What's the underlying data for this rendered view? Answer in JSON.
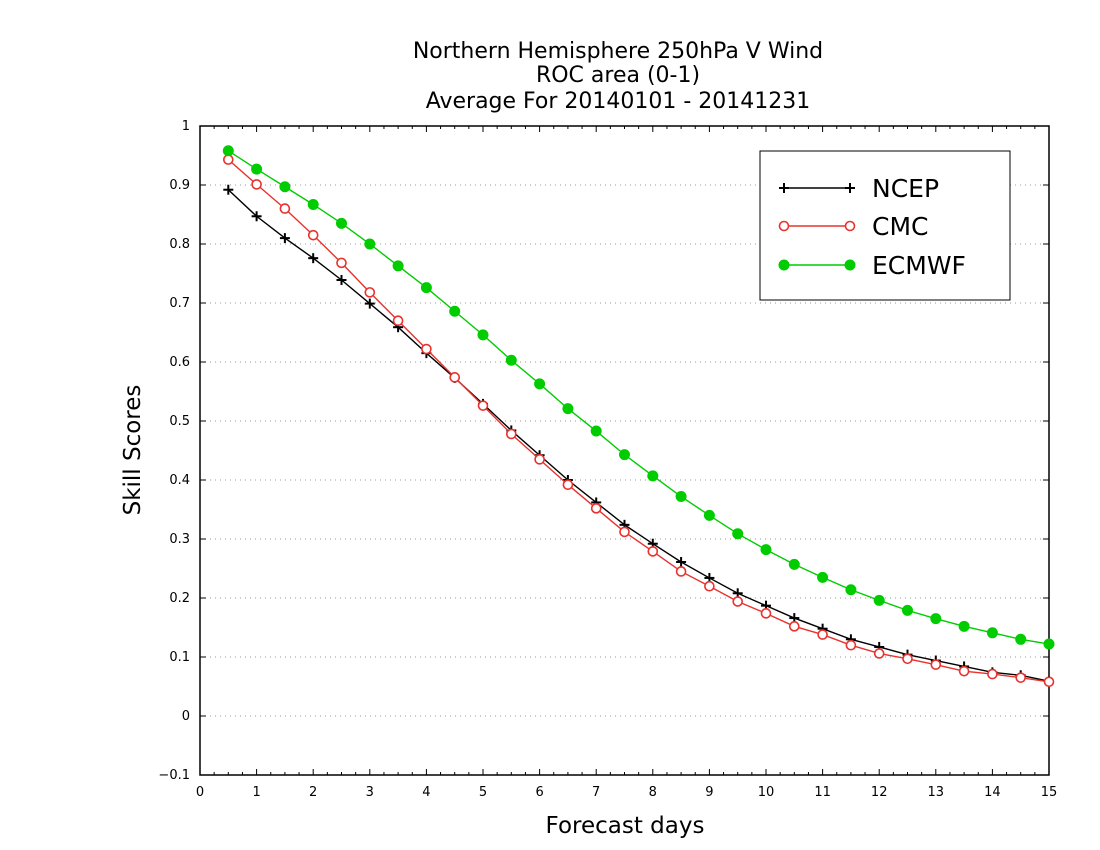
{
  "chart_data": {
    "type": "line",
    "title": [
      "Northern Hemisphere 250hPa V Wind",
      "ROC area (0-1)",
      "Average For 20140101 - 20141231"
    ],
    "xlabel": "Forecast days",
    "ylabel": "Skill Scores",
    "xlim": [
      0,
      15
    ],
    "ylim": [
      -0.1,
      1
    ],
    "xticks": [
      "0",
      "1",
      "2",
      "3",
      "4",
      "5",
      "6",
      "7",
      "8",
      "9",
      "10",
      "11",
      "12",
      "13",
      "14",
      "15"
    ],
    "yticks": [
      "−0.1",
      "0",
      "0.1",
      "0.2",
      "0.3",
      "0.4",
      "0.5",
      "0.6",
      "0.7",
      "0.8",
      "0.9",
      "1"
    ],
    "grid": "horizontal dotted",
    "legend_position": "top-right",
    "x": [
      0.5,
      1,
      1.5,
      2,
      2.5,
      3,
      3.5,
      4,
      4.5,
      5,
      5.5,
      6,
      6.5,
      7,
      7.5,
      8,
      8.5,
      9,
      9.5,
      10,
      10.5,
      11,
      11.5,
      12,
      12.5,
      13,
      13.5,
      14,
      14.5,
      15
    ],
    "series": [
      {
        "name": "NCEP",
        "color": "#000000",
        "marker": "plus",
        "values": [
          0.892,
          0.847,
          0.81,
          0.776,
          0.739,
          0.699,
          0.659,
          0.615,
          0.573,
          0.529,
          0.484,
          0.442,
          0.4,
          0.362,
          0.324,
          0.292,
          0.261,
          0.234,
          0.208,
          0.187,
          0.166,
          0.148,
          0.13,
          0.117,
          0.104,
          0.094,
          0.084,
          0.074,
          0.069,
          0.059
        ]
      },
      {
        "name": "CMC",
        "color": "#e8322d",
        "marker": "open-circle",
        "values": [
          0.943,
          0.901,
          0.86,
          0.815,
          0.768,
          0.718,
          0.67,
          0.622,
          0.574,
          0.526,
          0.478,
          0.435,
          0.392,
          0.352,
          0.312,
          0.279,
          0.245,
          0.22,
          0.194,
          0.174,
          0.152,
          0.138,
          0.12,
          0.106,
          0.097,
          0.087,
          0.076,
          0.071,
          0.065,
          0.058
        ]
      },
      {
        "name": "ECMWF",
        "color": "#00cc00",
        "marker": "filled-circle",
        "values": [
          0.958,
          0.927,
          0.897,
          0.867,
          0.835,
          0.8,
          0.763,
          0.726,
          0.686,
          0.646,
          0.603,
          0.563,
          0.521,
          0.483,
          0.443,
          0.407,
          0.372,
          0.34,
          0.309,
          0.282,
          0.257,
          0.235,
          0.214,
          0.196,
          0.179,
          0.165,
          0.152,
          0.141,
          0.13,
          0.122
        ]
      }
    ]
  }
}
